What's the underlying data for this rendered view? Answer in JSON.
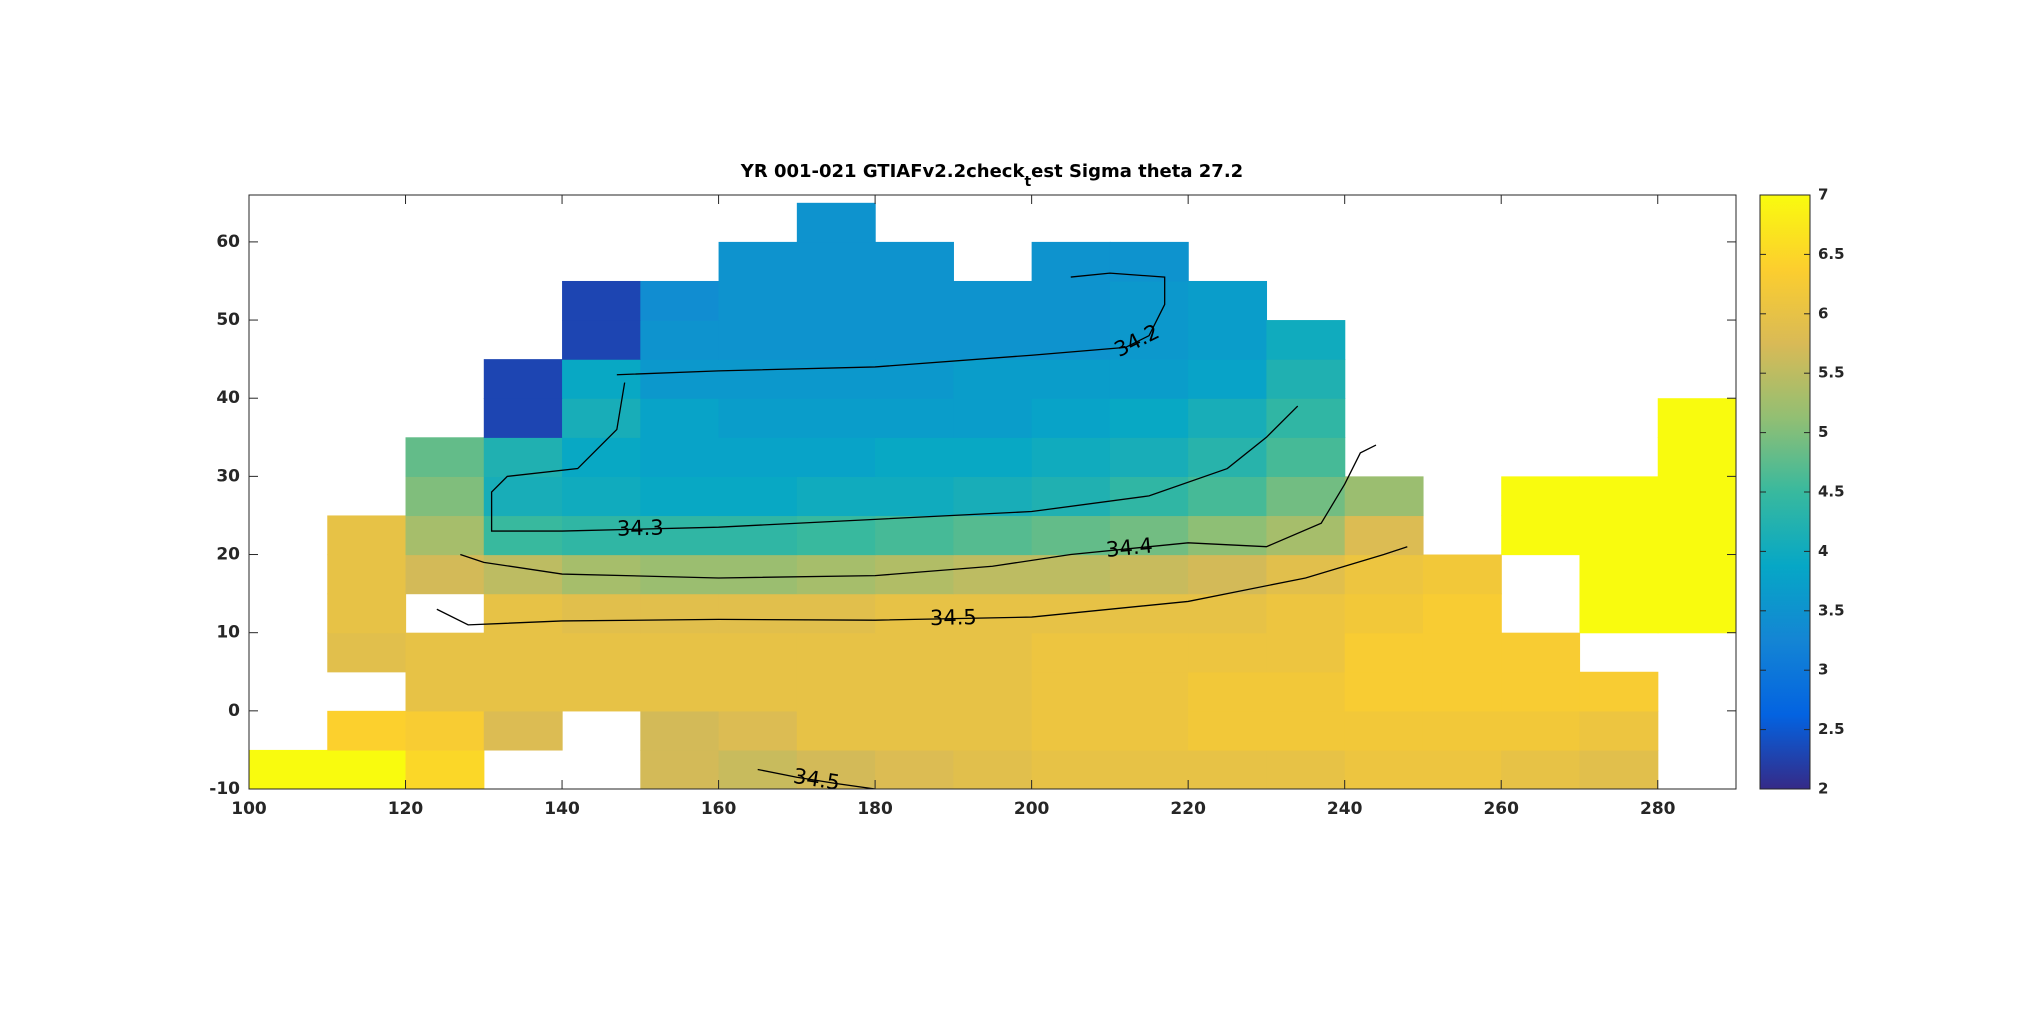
{
  "chart_data": {
    "type": "heatmap",
    "title": [
      "YR 001-021 GTIAFv2.2check",
      "t",
      "est Sigma theta 27.2"
    ],
    "xlim": [
      100,
      290
    ],
    "xticks": [
      100,
      120,
      140,
      160,
      180,
      200,
      220,
      240,
      260,
      280
    ],
    "ylim": [
      -10,
      66
    ],
    "yticks": [
      -10,
      0,
      10,
      20,
      30,
      40,
      50,
      60
    ],
    "clim": [
      2,
      7
    ],
    "cticks": [
      2,
      2.5,
      3,
      3.5,
      4,
      4.5,
      5,
      5.5,
      6,
      6.5,
      7
    ],
    "colormap": [
      "#352a87",
      "#0363e1",
      "#1485d4",
      "#06a7c6",
      "#38b99e",
      "#92bf73",
      "#d9ba56",
      "#fcce2e",
      "#f9fb0e"
    ],
    "x": [
      105,
      115,
      125,
      135,
      145,
      155,
      165,
      175,
      185,
      195,
      205,
      215,
      225,
      235,
      245,
      255,
      265,
      275,
      285
    ],
    "y": [
      -7.5,
      -2.5,
      2.5,
      7.5,
      12.5,
      17.5,
      22.5,
      27.5,
      32.5,
      37.5,
      42.5,
      47.5,
      52.5,
      57.5,
      62.5
    ],
    "z": [
      [
        7.0,
        7.0,
        6.5,
        null,
        null,
        5.7,
        5.6,
        5.7,
        5.8,
        5.9,
        6.0,
        6.0,
        6.0,
        6.0,
        6.1,
        6.1,
        6.0,
        5.9,
        null
      ],
      [
        null,
        6.4,
        6.3,
        5.8,
        null,
        5.7,
        5.8,
        6.0,
        6.0,
        6.0,
        6.1,
        6.1,
        6.2,
        6.2,
        6.2,
        6.2,
        6.2,
        6.1,
        null
      ],
      [
        null,
        null,
        6.0,
        6.0,
        6.0,
        6.0,
        6.0,
        6.0,
        6.0,
        6.0,
        6.1,
        6.1,
        6.2,
        6.2,
        6.3,
        6.3,
        6.3,
        6.3,
        null
      ],
      [
        null,
        5.9,
        6.0,
        6.0,
        6.0,
        6.0,
        6.0,
        6.0,
        6.0,
        6.0,
        6.1,
        6.1,
        6.1,
        6.1,
        6.3,
        6.3,
        6.3,
        null,
        null
      ],
      [
        null,
        6.0,
        null,
        6.0,
        5.9,
        5.9,
        5.9,
        5.9,
        6.0,
        6.0,
        6.0,
        6.0,
        6.0,
        6.1,
        6.2,
        6.3,
        null,
        7.0,
        7.0
      ],
      [
        null,
        6.0,
        5.7,
        5.5,
        5.3,
        5.2,
        5.2,
        5.3,
        5.4,
        5.5,
        5.5,
        5.6,
        5.7,
        5.9,
        6.1,
        6.2,
        null,
        7.0,
        7.0
      ],
      [
        null,
        6.0,
        5.3,
        4.5,
        4.4,
        4.4,
        4.4,
        4.5,
        4.6,
        4.7,
        4.8,
        4.9,
        5.1,
        5.3,
        5.8,
        null,
        7.0,
        7.0,
        7.0
      ],
      [
        null,
        null,
        5.0,
        4.1,
        4.0,
        3.9,
        3.9,
        4.0,
        4.0,
        4.1,
        4.2,
        4.4,
        4.6,
        4.9,
        5.2,
        null,
        7.0,
        7.0,
        7.0
      ],
      [
        null,
        null,
        4.8,
        4.2,
        3.9,
        3.8,
        3.8,
        3.8,
        3.9,
        3.9,
        4.0,
        4.1,
        4.3,
        4.6,
        null,
        null,
        null,
        null,
        7.0
      ],
      [
        null,
        null,
        null,
        2.3,
        4.1,
        3.8,
        3.7,
        3.7,
        3.7,
        3.7,
        3.8,
        3.9,
        4.1,
        4.4,
        null,
        null,
        null,
        null,
        7.0
      ],
      [
        null,
        null,
        null,
        2.3,
        3.9,
        3.6,
        3.6,
        3.6,
        3.6,
        3.7,
        3.7,
        3.7,
        3.8,
        4.2,
        null,
        null,
        null,
        null,
        null
      ],
      [
        null,
        null,
        null,
        null,
        2.3,
        3.5,
        3.5,
        3.5,
        3.5,
        3.5,
        3.5,
        3.6,
        3.7,
        4.0,
        null,
        null,
        null,
        null,
        null
      ],
      [
        null,
        null,
        null,
        null,
        2.3,
        3.4,
        3.5,
        3.5,
        3.5,
        3.5,
        3.5,
        3.6,
        3.7,
        null,
        null,
        null,
        null,
        null,
        null
      ],
      [
        null,
        null,
        null,
        null,
        null,
        null,
        3.5,
        3.5,
        3.5,
        null,
        3.5,
        3.5,
        null,
        null,
        null,
        null,
        null,
        null,
        null
      ],
      [
        null,
        null,
        null,
        null,
        null,
        null,
        null,
        3.5,
        null,
        null,
        null,
        null,
        null,
        null,
        null,
        null,
        null,
        null,
        null
      ]
    ],
    "contours": [
      {
        "level": 34.2,
        "x": [
          147,
          160,
          180,
          200,
          212,
          215,
          217,
          217,
          210,
          205
        ],
        "y": [
          43,
          43.5,
          44,
          45.5,
          46.5,
          48,
          52,
          55.5,
          56,
          55.5
        ]
      },
      {
        "level": 34.3,
        "x": [
          148,
          147,
          142,
          133,
          131,
          131,
          140,
          160,
          180,
          200,
          215,
          225,
          230,
          234
        ],
        "y": [
          42,
          36,
          31,
          30,
          28,
          23,
          23,
          23.5,
          24.5,
          25.5,
          27.5,
          31,
          35,
          39
        ]
      },
      {
        "level": 34.4,
        "x": [
          127,
          130,
          140,
          160,
          180,
          195,
          205,
          220,
          230,
          237,
          240,
          242,
          244
        ],
        "y": [
          20,
          19,
          17.5,
          17,
          17.3,
          18.5,
          20,
          21.5,
          21,
          24,
          29,
          33,
          34
        ]
      },
      {
        "level": 34.5,
        "x": [
          124,
          128,
          140,
          160,
          180,
          200,
          220,
          235,
          245,
          248
        ],
        "y": [
          13,
          11,
          11.5,
          11.7,
          11.6,
          12,
          14,
          17,
          20,
          21
        ]
      },
      {
        "level": 34.5,
        "x": [
          165,
          170,
          175,
          180
        ],
        "y": [
          -7.5,
          -8.5,
          -9.3,
          -10
        ]
      }
    ]
  }
}
